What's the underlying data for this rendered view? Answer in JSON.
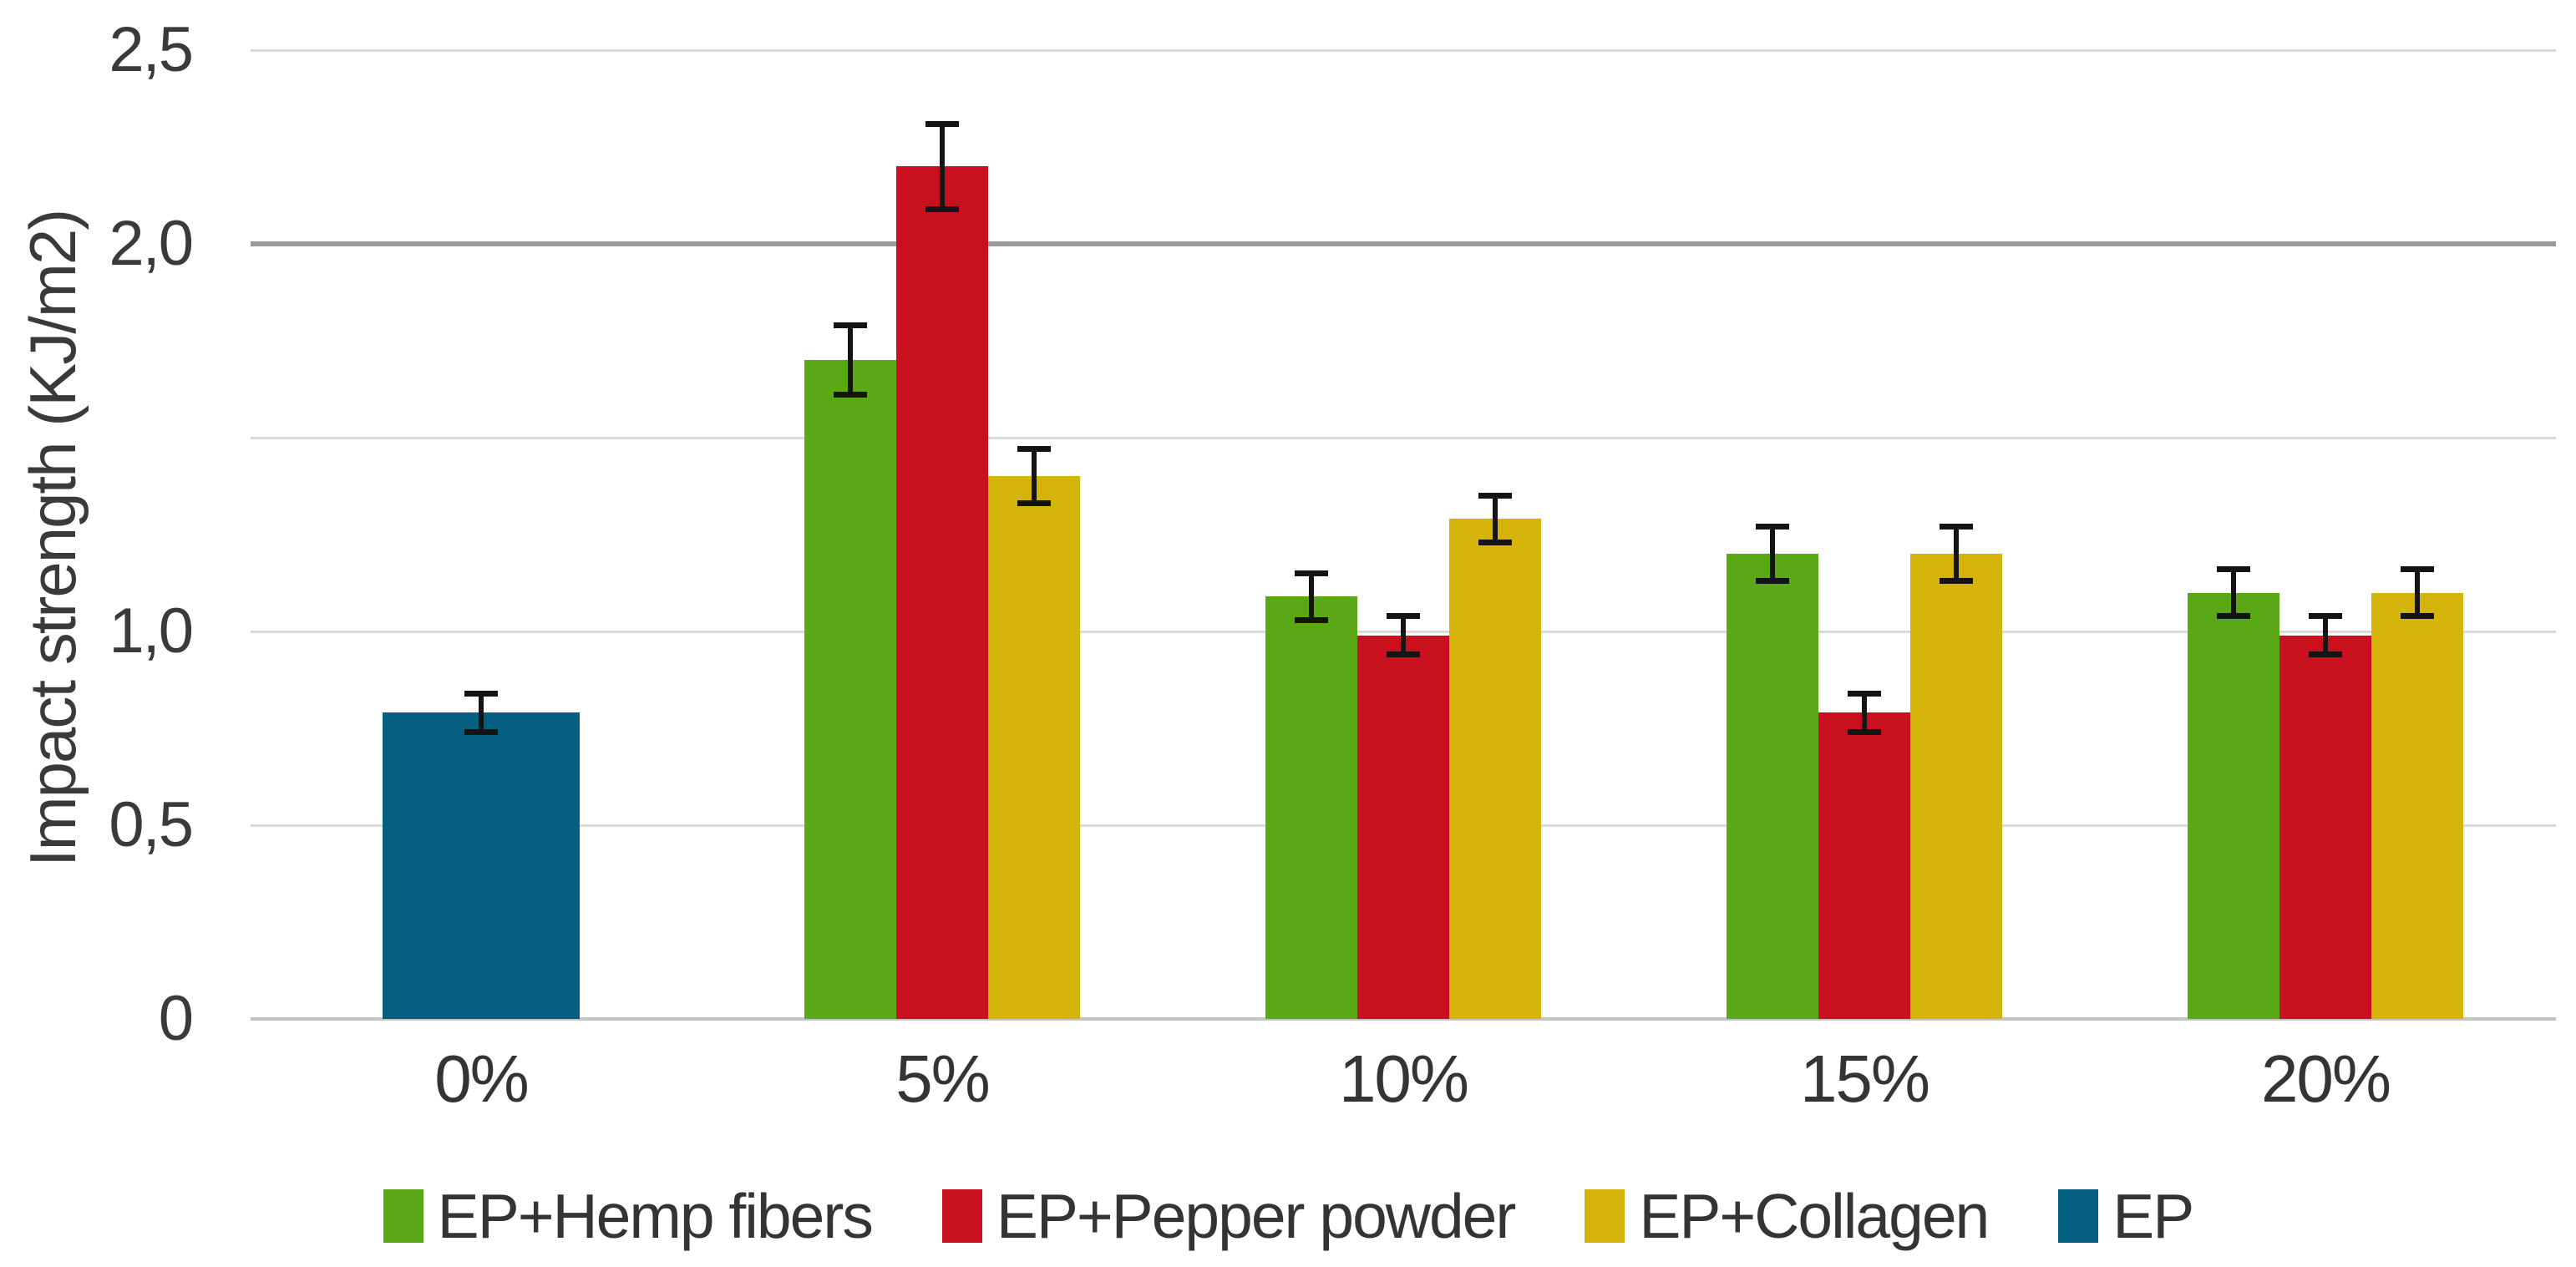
{
  "chart_data": {
    "type": "bar",
    "title": "",
    "xlabel": "",
    "ylabel": "Impact strength (KJ/m2)",
    "ylim": [
      0,
      2.5
    ],
    "grid": true,
    "legend_position": "bottom",
    "yticks": [
      {
        "value": 0,
        "label": "0"
      },
      {
        "value": 0.5,
        "label": "0,5"
      },
      {
        "value": 1.0,
        "label": "1,0"
      },
      {
        "value": 1.5,
        "label": ""
      },
      {
        "value": 2.0,
        "label": "2,0"
      },
      {
        "value": 2.5,
        "label": "2,5"
      }
    ],
    "dark_gridline_value": 2.0,
    "categories": [
      "0%",
      "5%",
      "10%",
      "15%",
      "20%"
    ],
    "series": [
      {
        "name": "EP+Hemp fibers",
        "color": "#5aa816",
        "values": [
          null,
          1.7,
          1.09,
          1.2,
          1.1
        ],
        "errors": [
          null,
          0.09,
          0.06,
          0.07,
          0.06
        ]
      },
      {
        "name": "EP+Pepper powder",
        "color": "#c8101f",
        "values": [
          null,
          2.2,
          0.99,
          0.79,
          0.99
        ],
        "errors": [
          null,
          0.11,
          0.05,
          0.05,
          0.05
        ]
      },
      {
        "name": "EP+Collagen",
        "color": "#d4b40b",
        "values": [
          null,
          1.4,
          1.29,
          1.2,
          1.1
        ],
        "errors": [
          null,
          0.07,
          0.06,
          0.07,
          0.06
        ]
      },
      {
        "name": "EP",
        "color": "#055f7e",
        "values": [
          0.79,
          null,
          null,
          null,
          null
        ],
        "errors": [
          0.05,
          null,
          null,
          null,
          null
        ]
      }
    ],
    "colors": {
      "gridline": "#d9d9d9",
      "gridline_dark": "#9a9a9a",
      "axis_line": "#c4c4c4",
      "error_bar": "#141414",
      "text": "#3a3a3a"
    }
  }
}
